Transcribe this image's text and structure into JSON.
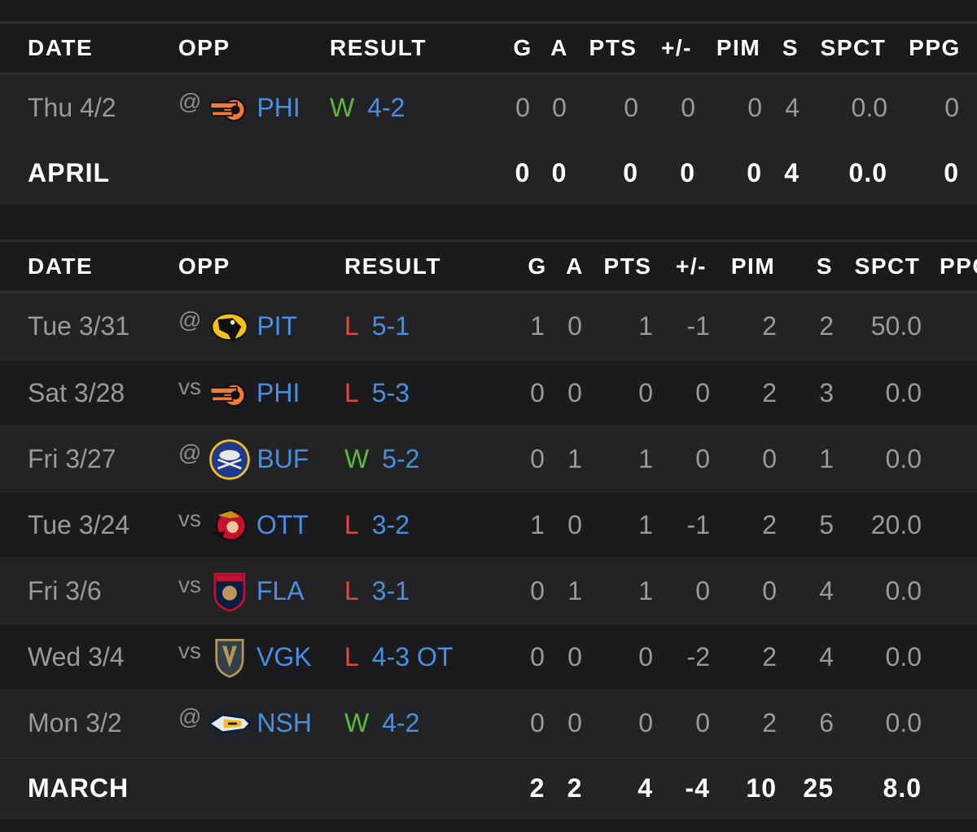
{
  "colors": {
    "background": "#1b1b1d",
    "row_alt": "#232325",
    "link": "#4a8fe0",
    "win": "#5dbb3c",
    "loss": "#e04a3a",
    "header_text": "#ffffff"
  },
  "columns": [
    "DATE",
    "OPP",
    "RESULT",
    "G",
    "A",
    "PTS",
    "+/-",
    "PIM",
    "S",
    "SPCT",
    "PPG"
  ],
  "april": {
    "games": [
      {
        "date": "Thu 4/2",
        "prefix": "@",
        "logo": "flyers-logo",
        "team": "PHI",
        "wl": "W",
        "score": "4-2",
        "g": "0",
        "a": "0",
        "pts": "0",
        "pm": "0",
        "pim": "0",
        "s": "4",
        "spct": "0.0",
        "ppg": "0"
      }
    ],
    "total": {
      "label": "APRIL",
      "g": "0",
      "a": "0",
      "pts": "0",
      "pm": "0",
      "pim": "0",
      "s": "4",
      "spct": "0.0",
      "ppg": "0"
    }
  },
  "march": {
    "games": [
      {
        "date": "Tue 3/31",
        "prefix": "@",
        "logo": "penguins-logo",
        "team": "PIT",
        "wl": "L",
        "score": "5-1",
        "g": "1",
        "a": "0",
        "pts": "1",
        "pm": "-1",
        "pim": "2",
        "s": "2",
        "spct": "50.0"
      },
      {
        "date": "Sat 3/28",
        "prefix": "vs",
        "logo": "flyers-logo",
        "team": "PHI",
        "wl": "L",
        "score": "5-3",
        "g": "0",
        "a": "0",
        "pts": "0",
        "pm": "0",
        "pim": "2",
        "s": "3",
        "spct": "0.0"
      },
      {
        "date": "Fri 3/27",
        "prefix": "@",
        "logo": "sabres-logo",
        "team": "BUF",
        "wl": "W",
        "score": "5-2",
        "g": "0",
        "a": "1",
        "pts": "1",
        "pm": "0",
        "pim": "0",
        "s": "1",
        "spct": "0.0"
      },
      {
        "date": "Tue 3/24",
        "prefix": "vs",
        "logo": "senators-logo",
        "team": "OTT",
        "wl": "L",
        "score": "3-2",
        "g": "1",
        "a": "0",
        "pts": "1",
        "pm": "-1",
        "pim": "2",
        "s": "5",
        "spct": "20.0"
      },
      {
        "date": "Fri 3/6",
        "prefix": "vs",
        "logo": "panthers-logo",
        "team": "FLA",
        "wl": "L",
        "score": "3-1",
        "g": "0",
        "a": "1",
        "pts": "1",
        "pm": "0",
        "pim": "0",
        "s": "4",
        "spct": "0.0"
      },
      {
        "date": "Wed 3/4",
        "prefix": "vs",
        "logo": "golden-knights-logo",
        "team": "VGK",
        "wl": "L",
        "score": "4-3 OT",
        "g": "0",
        "a": "0",
        "pts": "0",
        "pm": "-2",
        "pim": "2",
        "s": "4",
        "spct": "0.0"
      },
      {
        "date": "Mon 3/2",
        "prefix": "@",
        "logo": "predators-logo",
        "team": "NSH",
        "wl": "W",
        "score": "4-2",
        "g": "0",
        "a": "0",
        "pts": "0",
        "pm": "0",
        "pim": "2",
        "s": "6",
        "spct": "0.0"
      }
    ],
    "total": {
      "label": "MARCH",
      "g": "2",
      "a": "2",
      "pts": "4",
      "pm": "-4",
      "pim": "10",
      "s": "25",
      "spct": "8.0"
    }
  }
}
